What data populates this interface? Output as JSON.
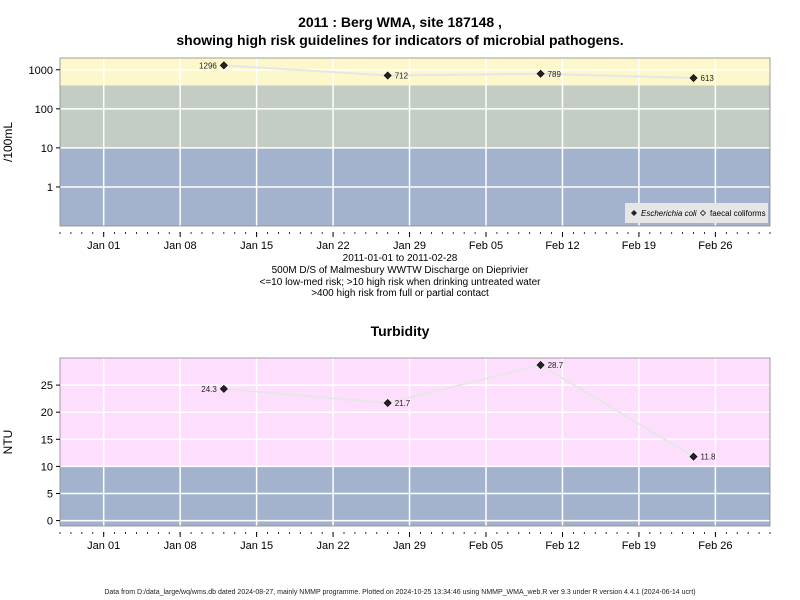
{
  "chart_data": [
    {
      "type": "scatter",
      "title_line1": "2011 : Berg WMA, site 187148 ,",
      "title_line2": "showing high risk guidelines for indicators of microbial pathogens.",
      "ylabel": "/100mL",
      "yscale": "log",
      "ylim": [
        0.1,
        2000
      ],
      "yticks": [
        1,
        10,
        100,
        1000
      ],
      "ytick_labels": [
        "1",
        "10",
        "100",
        "1000"
      ],
      "xlim": [
        "2010-12-28",
        "2011-03-03"
      ],
      "xticks": [
        "2011-01-01",
        "2011-01-08",
        "2011-01-15",
        "2011-01-22",
        "2011-01-29",
        "2011-02-05",
        "2011-02-12",
        "2011-02-19",
        "2011-02-26"
      ],
      "xtick_labels": [
        "Jan 01",
        "Jan 08",
        "Jan 15",
        "Jan 22",
        "Jan 29",
        "Feb 05",
        "Feb 12",
        "Feb 19",
        "Feb 26"
      ],
      "bands": [
        {
          "from": 0.1,
          "to": 10,
          "color": "#a3b3cd"
        },
        {
          "from": 10,
          "to": 400,
          "color": "#c3cdc3"
        },
        {
          "from": 400,
          "to": 2000,
          "color": "#fdf8cb"
        }
      ],
      "series": [
        {
          "name": "Escherichia coli",
          "marker": "filled-diamond",
          "x": [
            "2011-01-12",
            "2011-01-27",
            "2011-02-10",
            "2011-02-24"
          ],
          "y": [
            1296,
            712,
            789,
            613
          ],
          "labels": [
            "1296",
            "712",
            "789",
            "613"
          ]
        }
      ],
      "legend": {
        "position": "bottom-right",
        "entries": [
          "Escherichia coli",
          "faecal coliforms"
        ]
      },
      "caption_lines": [
        "2011-01-01 to 2011-02-28",
        "500M D/S of Malmesbury WWTW Discharge on Dieprivier",
        "<=10 low-med risk; >10 high risk when drinking untreated water",
        ">400 high risk from full or partial contact"
      ]
    },
    {
      "type": "scatter",
      "title": "Turbidity",
      "ylabel": "NTU",
      "ylim": [
        -1,
        30
      ],
      "yticks": [
        0,
        5,
        10,
        15,
        20,
        25
      ],
      "ytick_labels": [
        "0",
        "5",
        "10",
        "15",
        "20",
        "25"
      ],
      "xlim": [
        "2010-12-28",
        "2011-03-03"
      ],
      "xticks": [
        "2011-01-01",
        "2011-01-08",
        "2011-01-15",
        "2011-01-22",
        "2011-01-29",
        "2011-02-05",
        "2011-02-12",
        "2011-02-19",
        "2011-02-26"
      ],
      "xtick_labels": [
        "Jan 01",
        "Jan 08",
        "Jan 15",
        "Jan 22",
        "Jan 29",
        "Feb 05",
        "Feb 12",
        "Feb 19",
        "Feb 26"
      ],
      "bands": [
        {
          "from": -1,
          "to": 10,
          "color": "#a3b3cd"
        },
        {
          "from": 10,
          "to": 30,
          "color": "#fddffd"
        }
      ],
      "series": [
        {
          "marker": "filled-diamond",
          "x": [
            "2011-01-12",
            "2011-01-27",
            "2011-02-10",
            "2011-02-24"
          ],
          "y": [
            24.3,
            21.7,
            28.7,
            11.8
          ],
          "labels": [
            "24.3",
            "21.7",
            "28.7",
            "11.8"
          ]
        }
      ]
    }
  ],
  "footer": "Data from D:/data_large/wq/wms.db dated 2024-08-27, mainly NMMP programme. Plotted on 2024-10-25 13:34:46 using NMMP_WMA_web.R ver 9.3 under R version 4.4.1 (2024-06-14 ucrt)",
  "colors": {
    "grid": "#ffffff",
    "line": "#e6e6e6",
    "point": "#222222",
    "legend_bg": "#e6e6e6"
  }
}
